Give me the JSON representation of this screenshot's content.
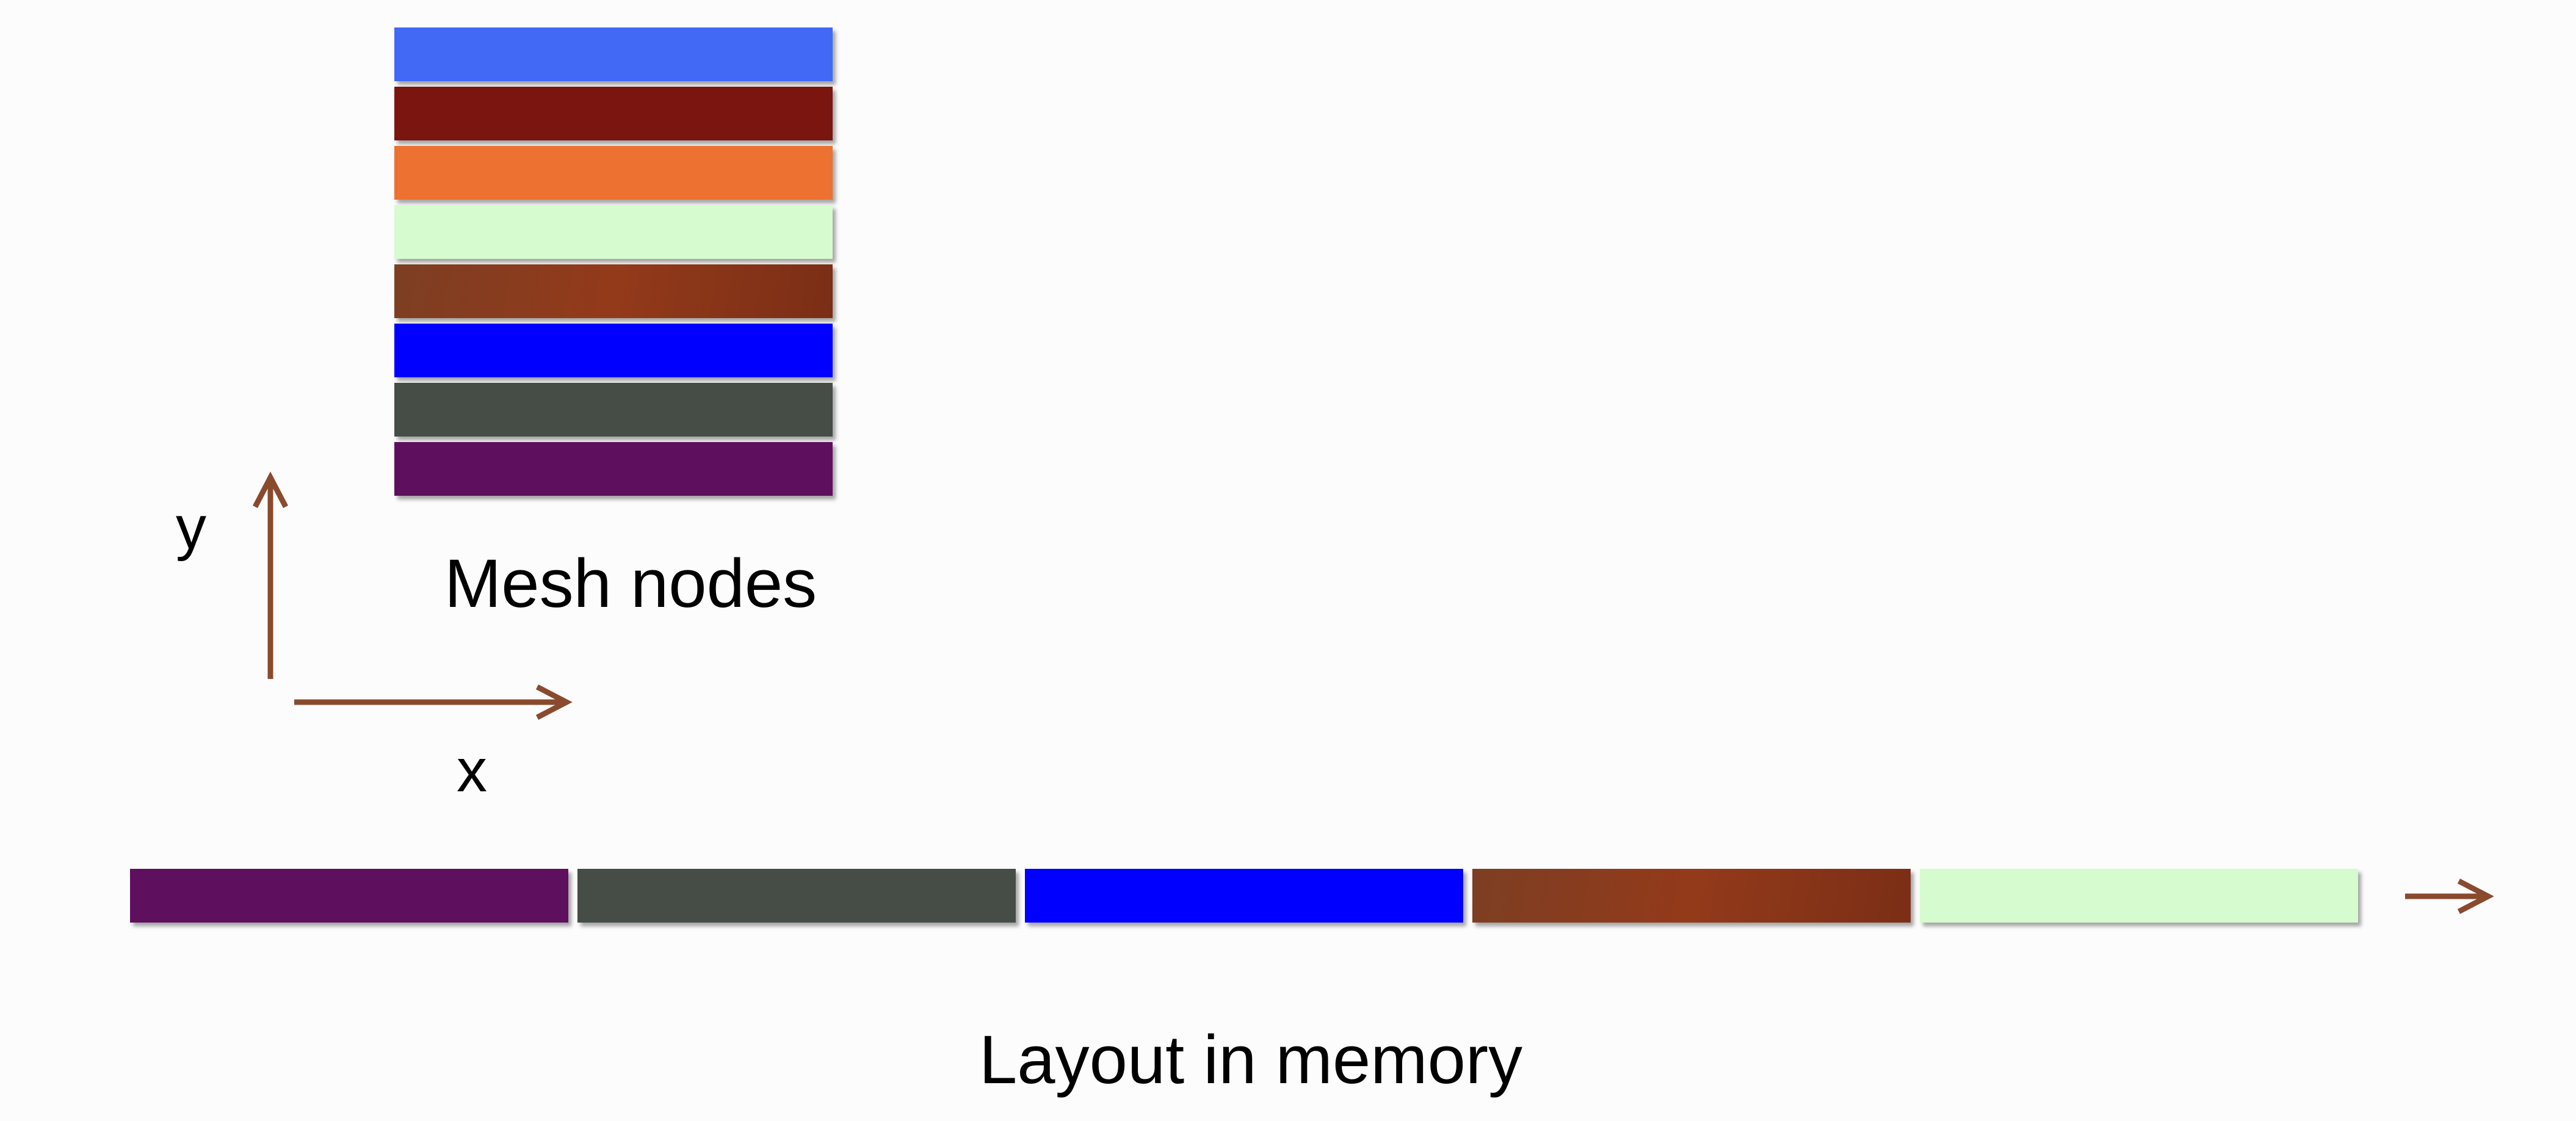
{
  "mesh_nodes": {
    "label": "Mesh nodes",
    "rows": [
      {
        "color": "#4169f5"
      },
      {
        "color": "#7a150f"
      },
      {
        "color": "#ed7130"
      },
      {
        "color": "#d6fbcf"
      },
      {
        "color": "#8e3a1c",
        "gradient": [
          "#7d3e23",
          "#933a1a",
          "#7b2e16"
        ]
      },
      {
        "color": "#0000ff"
      },
      {
        "color": "#464d47"
      },
      {
        "color": "#5e0f5e"
      }
    ]
  },
  "axes": {
    "x_label": "x",
    "y_label": "y",
    "arrow_color": "#8a4a2e"
  },
  "memory": {
    "label": "Layout in memory",
    "blocks": [
      {
        "color": "#5e0f5e"
      },
      {
        "color": "#464d47"
      },
      {
        "color": "#0000ff"
      },
      {
        "color": "#8e3a1c",
        "gradient": [
          "#7d3e23",
          "#933a1a",
          "#7b2e16"
        ]
      },
      {
        "color": "#d6fbcf"
      }
    ]
  }
}
